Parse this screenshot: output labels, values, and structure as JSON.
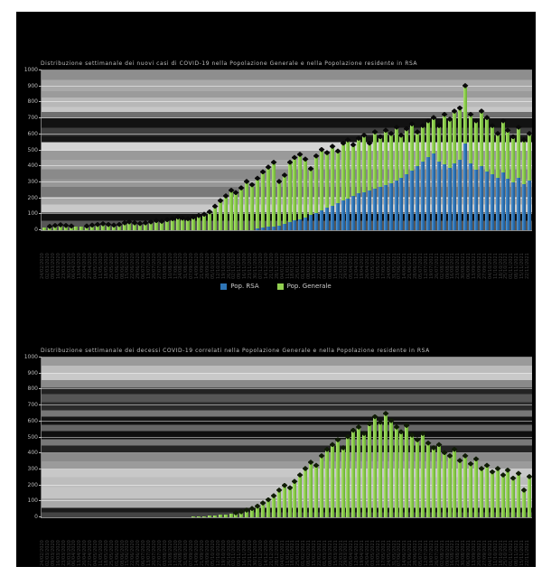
{
  "page": {
    "background": "#ffffff",
    "canvas_background": "#000000"
  },
  "legend": {
    "items": [
      {
        "label": "Pop. RSA",
        "color": "#2e75b6"
      },
      {
        "label": "Pop. Generale",
        "color": "#92d050"
      }
    ]
  },
  "axis": {
    "ytick_labels": [
      "0",
      "100",
      "200",
      "300",
      "400",
      "500",
      "600",
      "700",
      "800",
      "900",
      "1000"
    ]
  },
  "chart_data": [
    {
      "type": "bar",
      "stacked": true,
      "title": "Distribuzione settimanale dei nuovi casi di COVID-19 nella Popolazione Generale e nella Popolazione residente in RSA",
      "ylim": [
        0,
        1000
      ],
      "ytick_step": 100,
      "grid": true,
      "legend_position": "bottom",
      "x": [
        "24/02/2020",
        "02/03/2020",
        "09/03/2020",
        "16/03/2020",
        "23/03/2020",
        "30/03/2020",
        "06/04/2020",
        "13/04/2020",
        "20/04/2020",
        "27/04/2020",
        "04/05/2020",
        "11/05/2020",
        "18/05/2020",
        "25/05/2020",
        "01/06/2020",
        "08/06/2020",
        "15/06/2020",
        "22/06/2020",
        "29/06/2020",
        "06/07/2020",
        "13/07/2020",
        "20/07/2020",
        "27/07/2020",
        "03/08/2020",
        "10/08/2020",
        "17/08/2020",
        "24/08/2020",
        "31/08/2020",
        "07/09/2020",
        "14/09/2020",
        "21/09/2020",
        "28/09/2020",
        "05/10/2020",
        "12/10/2020",
        "19/10/2020",
        "26/10/2020",
        "02/11/2020",
        "09/11/2020",
        "16/11/2020",
        "23/11/2020",
        "30/11/2020",
        "07/12/2020",
        "14/12/2020",
        "21/12/2020",
        "28/12/2020",
        "04/01/2021",
        "11/01/2021",
        "18/01/2021",
        "25/01/2021",
        "01/02/2021",
        "08/02/2021",
        "15/02/2021",
        "22/02/2021",
        "01/03/2021",
        "08/03/2021",
        "15/03/2021",
        "22/03/2021",
        "29/03/2021",
        "05/04/2021",
        "12/04/2021",
        "19/04/2021",
        "26/04/2021",
        "03/05/2021",
        "10/05/2021",
        "17/05/2021",
        "24/05/2021",
        "31/05/2021",
        "07/06/2021",
        "14/06/2021",
        "21/06/2021",
        "28/06/2021",
        "05/07/2021",
        "12/07/2021",
        "19/07/2021",
        "26/07/2021",
        "02/08/2021",
        "09/08/2021",
        "16/08/2021",
        "23/08/2021",
        "30/08/2021",
        "06/09/2021",
        "13/09/2021",
        "20/09/2021",
        "27/09/2021",
        "04/10/2021",
        "11/10/2021",
        "18/10/2021",
        "25/10/2021",
        "01/11/2021",
        "08/11/2021",
        "15/11/2021",
        "22/11/2021"
      ],
      "series": [
        {
          "name": "Pop. RSA",
          "color": "#2e75b6",
          "values": [
            0,
            0,
            0,
            0,
            0,
            0,
            0,
            0,
            0,
            0,
            0,
            0,
            0,
            0,
            0,
            0,
            0,
            0,
            0,
            0,
            0,
            0,
            0,
            0,
            0,
            0,
            0,
            0,
            0,
            0,
            0,
            0,
            0,
            0,
            0,
            0,
            0,
            0,
            0,
            0,
            10,
            15,
            20,
            25,
            30,
            40,
            50,
            60,
            70,
            80,
            95,
            110,
            125,
            140,
            155,
            170,
            185,
            200,
            215,
            230,
            240,
            250,
            260,
            270,
            280,
            295,
            310,
            330,
            350,
            375,
            400,
            430,
            455,
            480,
            430,
            410,
            390,
            420,
            440,
            540,
            420,
            380,
            400,
            370,
            350,
            330,
            360,
            320,
            300,
            330,
            290,
            310
          ]
        },
        {
          "name": "Pop. Generale",
          "color": "#92d050",
          "values": [
            18,
            24,
            30,
            34,
            30,
            26,
            22,
            22,
            26,
            32,
            36,
            40,
            36,
            32,
            36,
            46,
            52,
            46,
            42,
            46,
            52,
            60,
            56,
            66,
            72,
            82,
            76,
            72,
            82,
            92,
            100,
            115,
            150,
            185,
            215,
            250,
            235,
            265,
            305,
            285,
            315,
            350,
            375,
            400,
            275,
            305,
            375,
            395,
            405,
            365,
            290,
            355,
            380,
            345,
            370,
            325,
            360,
            365,
            320,
            345,
            355,
            295,
            355,
            315,
            345,
            310,
            335,
            265,
            285,
            290,
            215,
            225,
            230,
            225,
            225,
            315,
            305,
            325,
            325,
            365,
            305,
            305,
            345,
            335,
            305,
            275,
            325,
            305,
            285,
            315,
            275,
            295
          ]
        }
      ]
    },
    {
      "type": "bar",
      "stacked": false,
      "title": "Distribuzione settimanale dei decessi COVID-19 correlati nella Popolazione Generale e nella Popolazione residente in RSA",
      "ylim": [
        0,
        1000
      ],
      "ytick_step": 100,
      "grid": true,
      "legend_position": "none",
      "x": [
        "24/02/2020",
        "02/03/2020",
        "09/03/2020",
        "16/03/2020",
        "23/03/2020",
        "30/03/2020",
        "06/04/2020",
        "13/04/2020",
        "20/04/2020",
        "27/04/2020",
        "04/05/2020",
        "11/05/2020",
        "18/05/2020",
        "25/05/2020",
        "01/06/2020",
        "08/06/2020",
        "15/06/2020",
        "22/06/2020",
        "29/06/2020",
        "06/07/2020",
        "13/07/2020",
        "20/07/2020",
        "27/07/2020",
        "03/08/2020",
        "10/08/2020",
        "17/08/2020",
        "24/08/2020",
        "31/08/2020",
        "07/09/2020",
        "14/09/2020",
        "21/09/2020",
        "28/09/2020",
        "05/10/2020",
        "12/10/2020",
        "19/10/2020",
        "26/10/2020",
        "02/11/2020",
        "09/11/2020",
        "16/11/2020",
        "23/11/2020",
        "30/11/2020",
        "07/12/2020",
        "14/12/2020",
        "21/12/2020",
        "28/12/2020",
        "04/01/2021",
        "11/01/2021",
        "18/01/2021",
        "25/01/2021",
        "01/02/2021",
        "08/02/2021",
        "15/02/2021",
        "22/02/2021",
        "01/03/2021",
        "08/03/2021",
        "15/03/2021",
        "22/03/2021",
        "29/03/2021",
        "05/04/2021",
        "12/04/2021",
        "19/04/2021",
        "26/04/2021",
        "03/05/2021",
        "10/05/2021",
        "17/05/2021",
        "24/05/2021",
        "31/05/2021",
        "07/06/2021",
        "14/06/2021",
        "21/06/2021",
        "28/06/2021",
        "05/07/2021",
        "12/07/2021",
        "19/07/2021",
        "26/07/2021",
        "02/08/2021",
        "09/08/2021",
        "16/08/2021",
        "23/08/2021",
        "30/08/2021",
        "06/09/2021",
        "13/09/2021",
        "20/09/2021",
        "27/09/2021",
        "04/10/2021",
        "11/10/2021",
        "18/10/2021",
        "25/10/2021",
        "01/11/2021",
        "08/11/2021",
        "15/11/2021",
        "22/11/2021"
      ],
      "series": [
        {
          "name": "Pop. Generale",
          "color": "#92d050",
          "values": [
            0,
            0,
            0,
            0,
            0,
            0,
            0,
            0,
            0,
            0,
            0,
            0,
            0,
            0,
            0,
            0,
            0,
            0,
            0,
            0,
            0,
            0,
            0,
            0,
            0,
            0,
            0,
            0,
            4,
            6,
            8,
            10,
            12,
            15,
            18,
            22,
            28,
            35,
            45,
            55,
            70,
            90,
            110,
            135,
            170,
            200,
            185,
            225,
            265,
            305,
            345,
            325,
            385,
            425,
            455,
            485,
            435,
            505,
            545,
            565,
            525,
            585,
            630,
            595,
            650,
            605,
            565,
            535,
            575,
            515,
            485,
            525,
            465,
            435,
            455,
            405,
            385,
            425,
            355,
            385,
            335,
            365,
            305,
            325,
            285,
            305,
            265,
            295,
            245,
            275,
            170,
            255
          ]
        }
      ]
    }
  ]
}
